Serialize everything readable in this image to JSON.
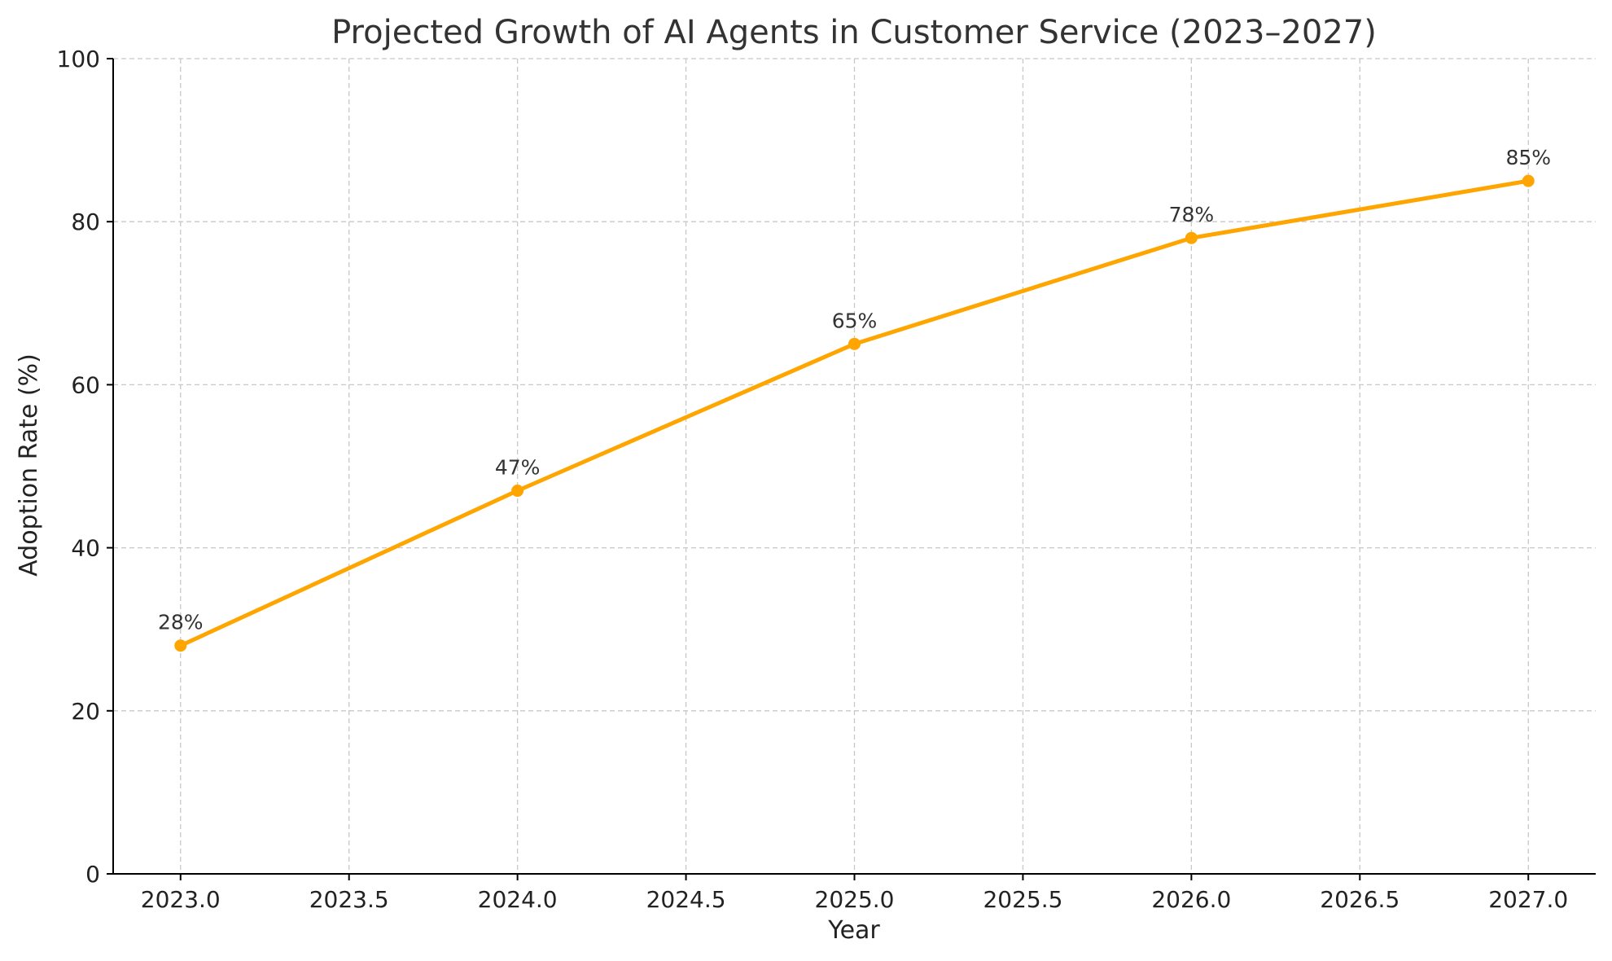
{
  "chart_data": {
    "type": "line",
    "title": "Projected Growth of AI Agents in Customer Service (2023–2027)",
    "xlabel": "Year",
    "ylabel": "Adoption Rate (%)",
    "xlim": [
      2022.8,
      2027.2
    ],
    "ylim": [
      0,
      100
    ],
    "x_ticks": [
      2023.0,
      2023.5,
      2024.0,
      2024.5,
      2025.0,
      2025.5,
      2026.0,
      2026.5,
      2027.0
    ],
    "x_tick_labels": [
      "2023.0",
      "2023.5",
      "2024.0",
      "2024.5",
      "2025.0",
      "2025.5",
      "2026.0",
      "2026.5",
      "2027.0"
    ],
    "y_ticks": [
      0,
      20,
      40,
      60,
      80,
      100
    ],
    "y_tick_labels": [
      "0",
      "20",
      "40",
      "60",
      "80",
      "100"
    ],
    "grid": true,
    "series": [
      {
        "color": "#FFA500",
        "x": [
          2023,
          2024,
          2025,
          2026,
          2027
        ],
        "values": [
          28,
          47,
          65,
          78,
          85
        ],
        "data_labels": [
          "28%",
          "47%",
          "65%",
          "78%",
          "85%"
        ]
      }
    ]
  }
}
